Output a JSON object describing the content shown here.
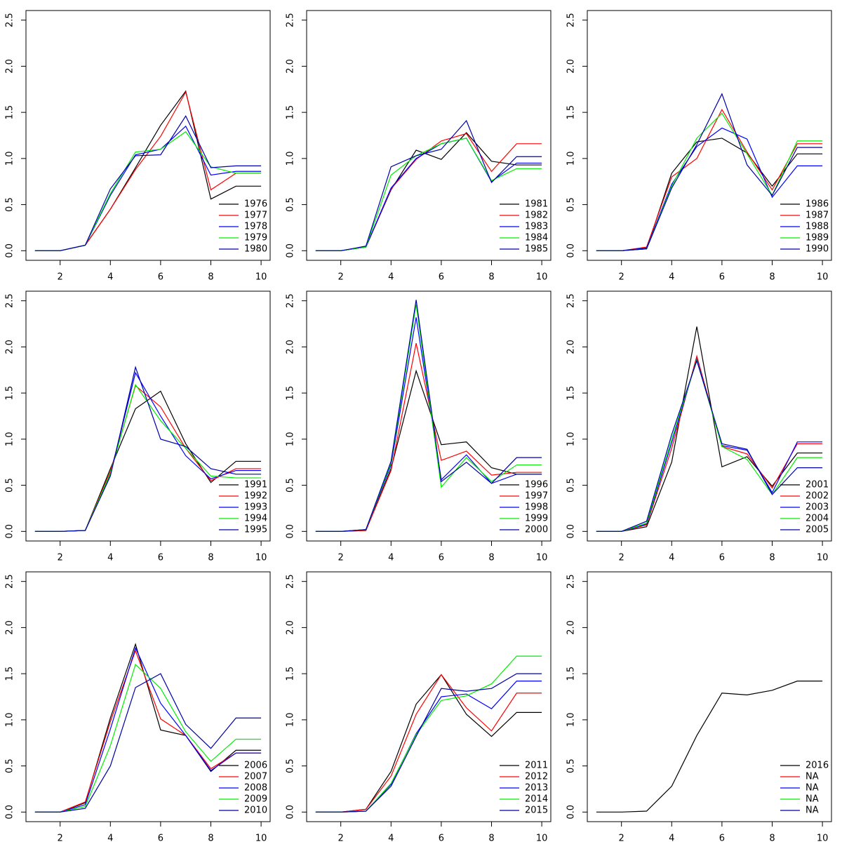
{
  "chart_data": [
    {
      "type": "line",
      "x": [
        1,
        2,
        3,
        4,
        5,
        6,
        7,
        8,
        9,
        10
      ],
      "xlim": [
        0.64,
        10.36
      ],
      "xticks": [
        2,
        4,
        6,
        8,
        10
      ],
      "ylim": [
        -0.104,
        2.604
      ],
      "yticks": [
        {
          "value": 0,
          "label": "0.0"
        },
        0.5,
        {
          "value": 1,
          "label": "1.0"
        },
        1.5,
        {
          "value": 2,
          "label": "2.0"
        },
        2.5
      ],
      "legend": "bottom-right",
      "series": [
        {
          "name": "1976",
          "color": "#000000",
          "values": [
            0,
            0,
            0.06,
            0.45,
            0.9,
            1.36,
            1.73,
            0.56,
            0.7,
            0.7
          ]
        },
        {
          "name": "1977",
          "color": "#ff0000",
          "values": [
            0,
            0,
            0.06,
            0.45,
            0.88,
            1.24,
            1.72,
            0.66,
            0.84,
            0.84
          ]
        },
        {
          "name": "1978",
          "color": "#0000ff",
          "values": [
            0,
            0,
            0.06,
            0.6,
            1.04,
            1.1,
            1.35,
            0.82,
            0.86,
            0.86
          ]
        },
        {
          "name": "1979",
          "color": "#00ee00",
          "values": [
            0,
            0,
            0.06,
            0.62,
            1.07,
            1.1,
            1.29,
            0.91,
            0.84,
            0.84
          ]
        },
        {
          "name": "1980",
          "color": "#0000aa",
          "values": [
            0,
            0,
            0.06,
            0.67,
            1.03,
            1.04,
            1.46,
            0.9,
            0.92,
            0.92
          ]
        }
      ]
    },
    {
      "type": "line",
      "x": [
        1,
        2,
        3,
        4,
        5,
        6,
        7,
        8,
        9,
        10
      ],
      "xlim": [
        0.64,
        10.36
      ],
      "xticks": [
        2,
        4,
        6,
        8,
        10
      ],
      "ylim": [
        -0.104,
        2.604
      ],
      "yticks": [
        {
          "value": 0,
          "label": "0.0"
        },
        0.5,
        {
          "value": 1,
          "label": "1.0"
        },
        1.5,
        {
          "value": 2,
          "label": "2.0"
        },
        2.5
      ],
      "legend": "bottom-right",
      "series": [
        {
          "name": "1981",
          "color": "#000000",
          "values": [
            0,
            0,
            0.04,
            0.66,
            1.09,
            0.99,
            1.28,
            0.97,
            0.93,
            0.93
          ]
        },
        {
          "name": "1982",
          "color": "#ff0000",
          "values": [
            0,
            0,
            0.04,
            0.67,
            0.99,
            1.19,
            1.27,
            0.86,
            1.16,
            1.16
          ]
        },
        {
          "name": "1983",
          "color": "#0000ff",
          "values": [
            0,
            0,
            0.04,
            0.68,
            1.0,
            1.16,
            1.22,
            0.75,
            0.95,
            0.95
          ]
        },
        {
          "name": "1984",
          "color": "#00ee00",
          "values": [
            0,
            0,
            0.04,
            0.82,
            1.03,
            1.16,
            1.22,
            0.76,
            0.89,
            0.89
          ]
        },
        {
          "name": "1985",
          "color": "#0000aa",
          "values": [
            0,
            0,
            0.05,
            0.91,
            1.03,
            1.1,
            1.41,
            0.74,
            1.02,
            1.02
          ]
        }
      ]
    },
    {
      "type": "line",
      "x": [
        1,
        2,
        3,
        4,
        5,
        6,
        7,
        8,
        9,
        10
      ],
      "xlim": [
        0.64,
        10.36
      ],
      "xticks": [
        2,
        4,
        6,
        8,
        10
      ],
      "ylim": [
        -0.104,
        2.604
      ],
      "yticks": [
        {
          "value": 0,
          "label": "0.0"
        },
        0.5,
        {
          "value": 1,
          "label": "1.0"
        },
        1.5,
        {
          "value": 2,
          "label": "2.0"
        },
        2.5
      ],
      "legend": "bottom-right",
      "series": [
        {
          "name": "1986",
          "color": "#000000",
          "values": [
            0,
            0,
            0.02,
            0.84,
            1.18,
            1.22,
            1.06,
            0.7,
            1.05,
            1.05
          ]
        },
        {
          "name": "1987",
          "color": "#ff0000",
          "values": [
            0,
            0,
            0.04,
            0.8,
            1.0,
            1.53,
            1.07,
            0.66,
            1.16,
            1.16
          ]
        },
        {
          "name": "1988",
          "color": "#0000ff",
          "values": [
            0,
            0,
            0.03,
            0.72,
            1.13,
            1.33,
            1.21,
            0.58,
            0.92,
            0.92
          ]
        },
        {
          "name": "1989",
          "color": "#00ee00",
          "values": [
            0,
            0,
            0.02,
            0.7,
            1.22,
            1.49,
            1.05,
            0.6,
            1.19,
            1.19
          ]
        },
        {
          "name": "1990",
          "color": "#0000aa",
          "values": [
            0,
            0,
            0.02,
            0.68,
            1.15,
            1.7,
            0.93,
            0.6,
            1.12,
            1.12
          ]
        }
      ]
    },
    {
      "type": "line",
      "x": [
        1,
        2,
        3,
        4,
        5,
        6,
        7,
        8,
        9,
        10
      ],
      "xlim": [
        0.64,
        10.36
      ],
      "xticks": [
        2,
        4,
        6,
        8,
        10
      ],
      "ylim": [
        -0.104,
        2.604
      ],
      "yticks": [
        {
          "value": 0,
          "label": "0.0"
        },
        0.5,
        {
          "value": 1,
          "label": "1.0"
        },
        1.5,
        {
          "value": 2,
          "label": "2.0"
        },
        2.5
      ],
      "legend": "bottom-right",
      "series": [
        {
          "name": "1991",
          "color": "#000000",
          "values": [
            0,
            0,
            0.01,
            0.68,
            1.33,
            1.52,
            0.95,
            0.53,
            0.76,
            0.76
          ]
        },
        {
          "name": "1992",
          "color": "#ff0000",
          "values": [
            0,
            0,
            0.01,
            0.65,
            1.58,
            1.35,
            0.9,
            0.55,
            0.68,
            0.68
          ]
        },
        {
          "name": "1993",
          "color": "#0000ff",
          "values": [
            0,
            0,
            0.01,
            0.62,
            1.72,
            1.25,
            0.82,
            0.57,
            0.66,
            0.66
          ]
        },
        {
          "name": "1994",
          "color": "#00ee00",
          "values": [
            0,
            0,
            0.01,
            0.63,
            1.59,
            1.2,
            0.9,
            0.6,
            0.58,
            0.58
          ]
        },
        {
          "name": "1995",
          "color": "#0000aa",
          "values": [
            0,
            0,
            0.01,
            0.6,
            1.78,
            1.0,
            0.92,
            0.68,
            0.62,
            0.62
          ]
        }
      ]
    },
    {
      "type": "line",
      "x": [
        1,
        2,
        3,
        4,
        5,
        6,
        7,
        8,
        9,
        10
      ],
      "xlim": [
        0.64,
        10.36
      ],
      "xticks": [
        2,
        4,
        6,
        8,
        10
      ],
      "ylim": [
        -0.104,
        2.604
      ],
      "yticks": [
        {
          "value": 0,
          "label": "0.0"
        },
        0.5,
        {
          "value": 1,
          "label": "1.0"
        },
        1.5,
        {
          "value": 2,
          "label": "2.0"
        },
        2.5
      ],
      "legend": "bottom-right",
      "series": [
        {
          "name": "1996",
          "color": "#000000",
          "values": [
            0,
            0,
            0.01,
            0.68,
            1.74,
            0.94,
            0.97,
            0.69,
            0.62,
            0.62
          ]
        },
        {
          "name": "1997",
          "color": "#ff0000",
          "values": [
            0,
            0,
            0.01,
            0.66,
            2.04,
            0.77,
            0.87,
            0.61,
            0.64,
            0.64
          ]
        },
        {
          "name": "1998",
          "color": "#0000ff",
          "values": [
            0,
            0,
            0.02,
            0.72,
            2.32,
            0.56,
            0.83,
            0.52,
            0.62,
            0.62
          ]
        },
        {
          "name": "1999",
          "color": "#00ee00",
          "values": [
            0,
            0,
            0.02,
            0.74,
            2.46,
            0.48,
            0.8,
            0.54,
            0.72,
            0.72
          ]
        },
        {
          "name": "2000",
          "color": "#0000aa",
          "values": [
            0,
            0,
            0.02,
            0.76,
            2.51,
            0.54,
            0.75,
            0.52,
            0.8,
            0.8
          ]
        }
      ]
    },
    {
      "type": "line",
      "x": [
        1,
        2,
        3,
        4,
        5,
        6,
        7,
        8,
        9,
        10
      ],
      "xlim": [
        0.64,
        10.36
      ],
      "xticks": [
        2,
        4,
        6,
        8,
        10
      ],
      "ylim": [
        -0.104,
        2.604
      ],
      "yticks": [
        {
          "value": 0,
          "label": "0.0"
        },
        0.5,
        {
          "value": 1,
          "label": "1.0"
        },
        1.5,
        {
          "value": 2,
          "label": "2.0"
        },
        2.5
      ],
      "legend": "bottom-right",
      "series": [
        {
          "name": "2001",
          "color": "#000000",
          "values": [
            0,
            0,
            0.05,
            0.75,
            2.22,
            0.7,
            0.81,
            0.49,
            0.85,
            0.85
          ]
        },
        {
          "name": "2002",
          "color": "#ff0000",
          "values": [
            0,
            0,
            0.07,
            0.9,
            1.9,
            0.92,
            0.84,
            0.47,
            0.95,
            0.95
          ]
        },
        {
          "name": "2003",
          "color": "#0000ff",
          "values": [
            0,
            0,
            0.08,
            0.96,
            1.87,
            0.93,
            0.88,
            0.42,
            0.97,
            0.97
          ]
        },
        {
          "name": "2004",
          "color": "#00ee00",
          "values": [
            0,
            0,
            0.09,
            1.0,
            1.86,
            0.92,
            0.78,
            0.4,
            0.8,
            0.8
          ]
        },
        {
          "name": "2005",
          "color": "#0000aa",
          "values": [
            0,
            0,
            0.11,
            1.05,
            1.85,
            0.95,
            0.89,
            0.4,
            0.69,
            0.69
          ]
        }
      ]
    },
    {
      "type": "line",
      "x": [
        1,
        2,
        3,
        4,
        5,
        6,
        7,
        8,
        9,
        10
      ],
      "xlim": [
        0.64,
        10.36
      ],
      "xticks": [
        2,
        4,
        6,
        8,
        10
      ],
      "ylim": [
        -0.104,
        2.604
      ],
      "yticks": [
        {
          "value": 0,
          "label": "0.0"
        },
        0.5,
        {
          "value": 1,
          "label": "1.0"
        },
        1.5,
        {
          "value": 2,
          "label": "2.0"
        },
        2.5
      ],
      "legend": "bottom-right",
      "series": [
        {
          "name": "2006",
          "color": "#000000",
          "values": [
            0,
            0,
            0.1,
            1.02,
            1.82,
            0.89,
            0.83,
            0.44,
            0.67,
            0.67
          ]
        },
        {
          "name": "2007",
          "color": "#ff0000",
          "values": [
            0,
            0,
            0.11,
            0.98,
            1.75,
            1.01,
            0.83,
            0.47,
            0.64,
            0.64
          ]
        },
        {
          "name": "2008",
          "color": "#0000ff",
          "values": [
            0,
            0,
            0.08,
            0.9,
            1.78,
            1.18,
            0.83,
            0.45,
            0.64,
            0.64
          ]
        },
        {
          "name": "2009",
          "color": "#00ee00",
          "values": [
            0,
            0,
            0.06,
            0.72,
            1.6,
            1.34,
            0.87,
            0.55,
            0.79,
            0.79
          ]
        },
        {
          "name": "2010",
          "color": "#0000aa",
          "values": [
            0,
            0,
            0.04,
            0.5,
            1.35,
            1.5,
            0.95,
            0.69,
            1.02,
            1.02
          ]
        }
      ]
    },
    {
      "type": "line",
      "x": [
        1,
        2,
        3,
        4,
        5,
        6,
        7,
        8,
        9,
        10
      ],
      "xlim": [
        0.64,
        10.36
      ],
      "xticks": [
        2,
        4,
        6,
        8,
        10
      ],
      "ylim": [
        -0.104,
        2.604
      ],
      "yticks": [
        {
          "value": 0,
          "label": "0.0"
        },
        0.5,
        {
          "value": 1,
          "label": "1.0"
        },
        1.5,
        {
          "value": 2,
          "label": "2.0"
        },
        2.5
      ],
      "legend": "bottom-right",
      "series": [
        {
          "name": "2011",
          "color": "#000000",
          "values": [
            0,
            0,
            0.03,
            0.44,
            1.17,
            1.49,
            1.06,
            0.82,
            1.08,
            1.08
          ]
        },
        {
          "name": "2012",
          "color": "#ff0000",
          "values": [
            0,
            0,
            0.03,
            0.39,
            1.06,
            1.49,
            1.13,
            0.88,
            1.29,
            1.29
          ]
        },
        {
          "name": "2013",
          "color": "#0000ff",
          "values": [
            0,
            0,
            0.01,
            0.3,
            0.85,
            1.25,
            1.28,
            1.12,
            1.42,
            1.42
          ]
        },
        {
          "name": "2014",
          "color": "#00ee00",
          "values": [
            0,
            0,
            0.01,
            0.31,
            0.84,
            1.21,
            1.26,
            1.39,
            1.69,
            1.69
          ]
        },
        {
          "name": "2015",
          "color": "#0000aa",
          "values": [
            0,
            0,
            0.01,
            0.28,
            0.82,
            1.34,
            1.31,
            1.34,
            1.5,
            1.5
          ]
        }
      ]
    },
    {
      "type": "line",
      "x": [
        1,
        2,
        3,
        4,
        5,
        6,
        7,
        8,
        9,
        10
      ],
      "xlim": [
        0.64,
        10.36
      ],
      "xticks": [
        2,
        4,
        6,
        8,
        10
      ],
      "ylim": [
        -0.104,
        2.604
      ],
      "yticks": [
        {
          "value": 0,
          "label": "0.0"
        },
        0.5,
        {
          "value": 1,
          "label": "1.0"
        },
        1.5,
        {
          "value": 2,
          "label": "2.0"
        },
        2.5
      ],
      "legend": "bottom-right",
      "series": [
        {
          "name": "2016",
          "color": "#000000",
          "values": [
            0,
            0,
            0.01,
            0.28,
            0.83,
            1.29,
            1.27,
            1.32,
            1.42,
            1.42
          ]
        },
        {
          "name": "NA",
          "color": "#ff0000",
          "values": [
            null,
            null,
            null,
            null,
            null,
            null,
            null,
            null,
            null,
            null
          ]
        },
        {
          "name": "NA",
          "color": "#0000ff",
          "values": [
            null,
            null,
            null,
            null,
            null,
            null,
            null,
            null,
            null,
            null
          ]
        },
        {
          "name": "NA",
          "color": "#00ee00",
          "values": [
            null,
            null,
            null,
            null,
            null,
            null,
            null,
            null,
            null,
            null
          ]
        },
        {
          "name": "NA",
          "color": "#0000aa",
          "values": [
            null,
            null,
            null,
            null,
            null,
            null,
            null,
            null,
            null,
            null
          ]
        }
      ]
    }
  ]
}
